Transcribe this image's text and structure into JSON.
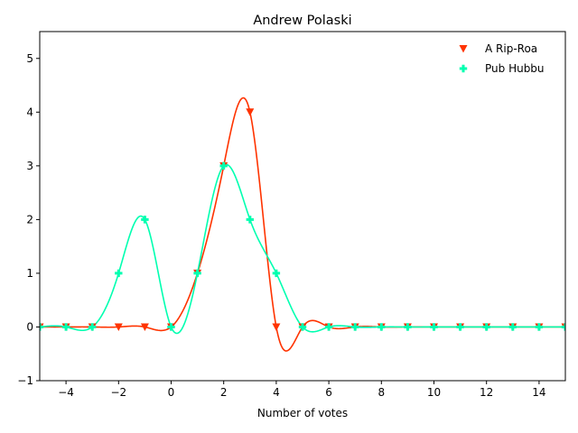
{
  "chart_data": {
    "type": "line",
    "title": "Andrew Polaski",
    "xlabel": "Number of votes",
    "ylabel": "",
    "xlim": [
      -5,
      15
    ],
    "ylim": [
      -1,
      5.5
    ],
    "xticks": [
      -4,
      -2,
      0,
      2,
      4,
      6,
      8,
      10,
      12,
      14
    ],
    "yticks": [
      -1,
      0,
      1,
      2,
      3,
      4,
      5
    ],
    "grid": false,
    "legend_position": "top-right",
    "series": [
      {
        "name": "A Rip-Roa",
        "color": "#ff3300",
        "marker": "triangle-down",
        "x": [
          -5,
          -4,
          -3,
          -2,
          -1,
          0,
          1,
          2,
          3,
          4,
          5,
          6,
          7,
          8,
          9,
          10,
          11,
          12,
          13,
          14,
          15
        ],
        "y": [
          0,
          0,
          0,
          0,
          0,
          0,
          1,
          3,
          4,
          0,
          0,
          0,
          0,
          0,
          0,
          0,
          0,
          0,
          0,
          0,
          0
        ]
      },
      {
        "name": "Pub Hubbu",
        "color": "#00ffb0",
        "marker": "plus",
        "x": [
          -5,
          -4,
          -3,
          -2,
          -1,
          0,
          1,
          2,
          3,
          4,
          5,
          6,
          7,
          8,
          9,
          10,
          11,
          12,
          13,
          14,
          15
        ],
        "y": [
          0,
          0,
          0,
          1,
          2,
          0,
          1,
          3,
          2,
          1,
          0,
          0,
          0,
          0,
          0,
          0,
          0,
          0,
          0,
          0,
          0
        ]
      }
    ]
  }
}
